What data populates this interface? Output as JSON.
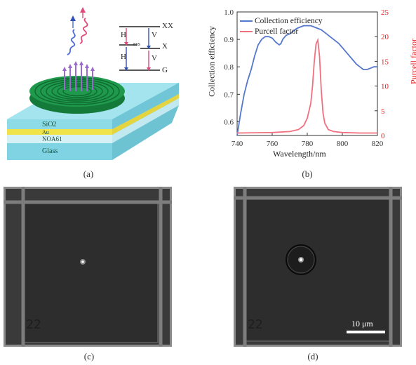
{
  "figure": {
    "captions": [
      "(a)",
      "(b)",
      "(c)",
      "(d)"
    ]
  },
  "panel_a": {
    "layers": [
      "SiO2",
      "Au",
      "NOA61",
      "Glass"
    ],
    "energy_levels": [
      "XX",
      "X",
      "G"
    ],
    "transitions_left": [
      "H",
      "H"
    ],
    "transitions_right": [
      "V",
      "V"
    ],
    "fss_label": "FSS"
  },
  "panel_c": {
    "marker": "22"
  },
  "panel_d": {
    "marker": "22",
    "scale_bar": "10 μm"
  },
  "chart_data": {
    "type": "line",
    "xlabel": "Wavelength/nm",
    "xlim": [
      740,
      820
    ],
    "x_ticks": [
      740,
      760,
      780,
      800,
      820
    ],
    "y_left": {
      "label": "Collection efficiency",
      "lim": [
        0.55,
        1.0
      ],
      "ticks": [
        0.6,
        0.7,
        0.8,
        0.9,
        1.0
      ]
    },
    "y_right": {
      "label": "Purcell factor",
      "lim": [
        0,
        25
      ],
      "ticks": [
        0,
        5,
        10,
        15,
        20,
        25
      ],
      "color": "#e02020"
    },
    "legend_position": "top-left",
    "series": [
      {
        "name": "Collection efficiency",
        "axis": "left",
        "color": "#5577cc",
        "x": [
          740,
          742,
          744,
          746,
          748,
          750,
          752,
          754,
          756,
          758,
          760,
          762,
          764,
          765,
          766,
          768,
          770,
          772,
          774,
          776,
          778,
          780,
          782,
          784,
          786,
          788,
          790,
          792,
          794,
          796,
          798,
          800,
          802,
          804,
          806,
          808,
          810,
          812,
          814,
          816,
          818,
          820
        ],
        "y": [
          0.55,
          0.63,
          0.7,
          0.75,
          0.79,
          0.84,
          0.88,
          0.9,
          0.91,
          0.91,
          0.905,
          0.89,
          0.88,
          0.885,
          0.9,
          0.915,
          0.92,
          0.93,
          0.94,
          0.945,
          0.95,
          0.95,
          0.95,
          0.945,
          0.94,
          0.935,
          0.925,
          0.915,
          0.905,
          0.895,
          0.885,
          0.87,
          0.855,
          0.84,
          0.825,
          0.81,
          0.8,
          0.79,
          0.79,
          0.795,
          0.8,
          0.8
        ]
      },
      {
        "name": "Purcell factor",
        "axis": "right",
        "color": "#f07080",
        "x": [
          740,
          760,
          770,
          775,
          778,
          780,
          782,
          783,
          784,
          785,
          786,
          787,
          788,
          789,
          790,
          792,
          795,
          800,
          810,
          820
        ],
        "y": [
          0.5,
          0.6,
          0.8,
          1.2,
          2.0,
          3.5,
          6.5,
          10.0,
          15.0,
          18.5,
          19.3,
          16.0,
          9.0,
          4.5,
          2.5,
          1.2,
          0.8,
          0.6,
          0.5,
          0.5
        ]
      }
    ]
  }
}
